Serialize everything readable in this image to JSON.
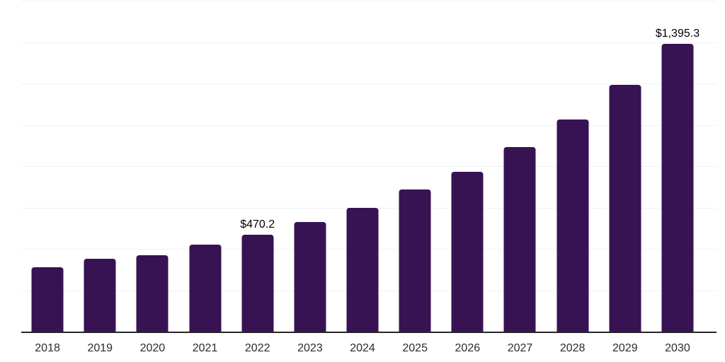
{
  "chart": {
    "colors": {
      "bar": "#371353",
      "grid_line": "#f1f1f1",
      "axis_line": "#262626",
      "data_label": "#000000",
      "tick_label": "#2b2b2b",
      "background": "#ffffff"
    },
    "data_labels_shown": [
      "$470.2",
      "$1,395.3"
    ]
  },
  "chart_data": {
    "type": "bar",
    "title": "",
    "xlabel": "",
    "ylabel": "",
    "categories": [
      "2018",
      "2019",
      "2020",
      "2021",
      "2022",
      "2023",
      "2024",
      "2025",
      "2026",
      "2027",
      "2028",
      "2029",
      "2030"
    ],
    "values": [
      316,
      356,
      373,
      424,
      470.2,
      533,
      601,
      689,
      777,
      896,
      1029,
      1195,
      1395.3
    ],
    "data_labels": [
      "",
      "",
      "",
      "",
      "$470.2",
      "",
      "",
      "",
      "",
      "",
      "",
      "",
      "$1,395.3"
    ],
    "labeled_points": {
      "2022": "$470.2",
      "2030": "$1,395.3"
    },
    "ylim": [
      0,
      1600
    ],
    "gridline_interval": 200,
    "grid": true,
    "legend": false,
    "y_tick_labels_visible": false
  }
}
